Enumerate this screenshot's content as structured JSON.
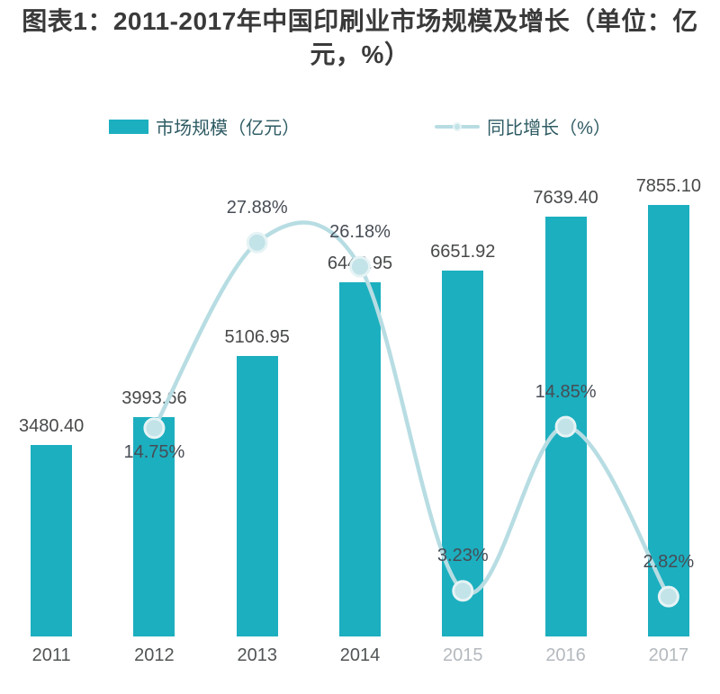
{
  "title": "图表1：2011-2017年中国印刷业市场规模及增长（单位：亿元，%）",
  "legend": {
    "market_size": "市场规模（亿元）",
    "growth": "同比增长（%）"
  },
  "colors": {
    "bar": "#1CAFBF",
    "line": "#B7DDE3",
    "marker_fill": "#C2E3E8",
    "marker_ring": "#E6F3F5",
    "title": "#3A3A3A",
    "value_label": "#47494B",
    "pct_label": "#474C55",
    "year": "#515456",
    "year_faded": "#9BA2A8",
    "legend_text": "#2E5B63"
  },
  "chart_data": {
    "type": "bar",
    "subtype": "bar+line-combo",
    "title": "图表1：2011-2017年中国印刷业市场规模及增长（单位：亿元，%）",
    "categories": [
      "2011",
      "2012",
      "2013",
      "2014",
      "2015",
      "2016",
      "2017"
    ],
    "series": [
      {
        "name": "市场规模（亿元）",
        "type": "bar",
        "axis": "y1",
        "values": [
          3480.4,
          3993.66,
          5106.95,
          6443.95,
          6651.92,
          7639.4,
          7855.1
        ],
        "labels": [
          "3480.40",
          "3993.66",
          "5106.95",
          "6443.95",
          "6651.92",
          "7639.40",
          "7855.10"
        ]
      },
      {
        "name": "同比增长（%）",
        "type": "line",
        "axis": "y2",
        "smooth": true,
        "values": [
          null,
          14.75,
          27.88,
          26.18,
          3.23,
          14.85,
          2.82
        ],
        "labels": [
          null,
          "14.75%",
          "27.88%",
          "26.18%",
          "3.23%",
          "14.85%",
          "2.82%"
        ],
        "label_position": [
          null,
          "below",
          "above",
          "above",
          "above",
          "above",
          "above"
        ]
      }
    ],
    "xlabel": "",
    "ylabel": "",
    "y1lim": [
      0,
      9000
    ],
    "y2lim": [
      0,
      35
    ],
    "grid": false,
    "legend_position": "top",
    "faded_categories": [
      "2015",
      "2016",
      "2017"
    ]
  }
}
